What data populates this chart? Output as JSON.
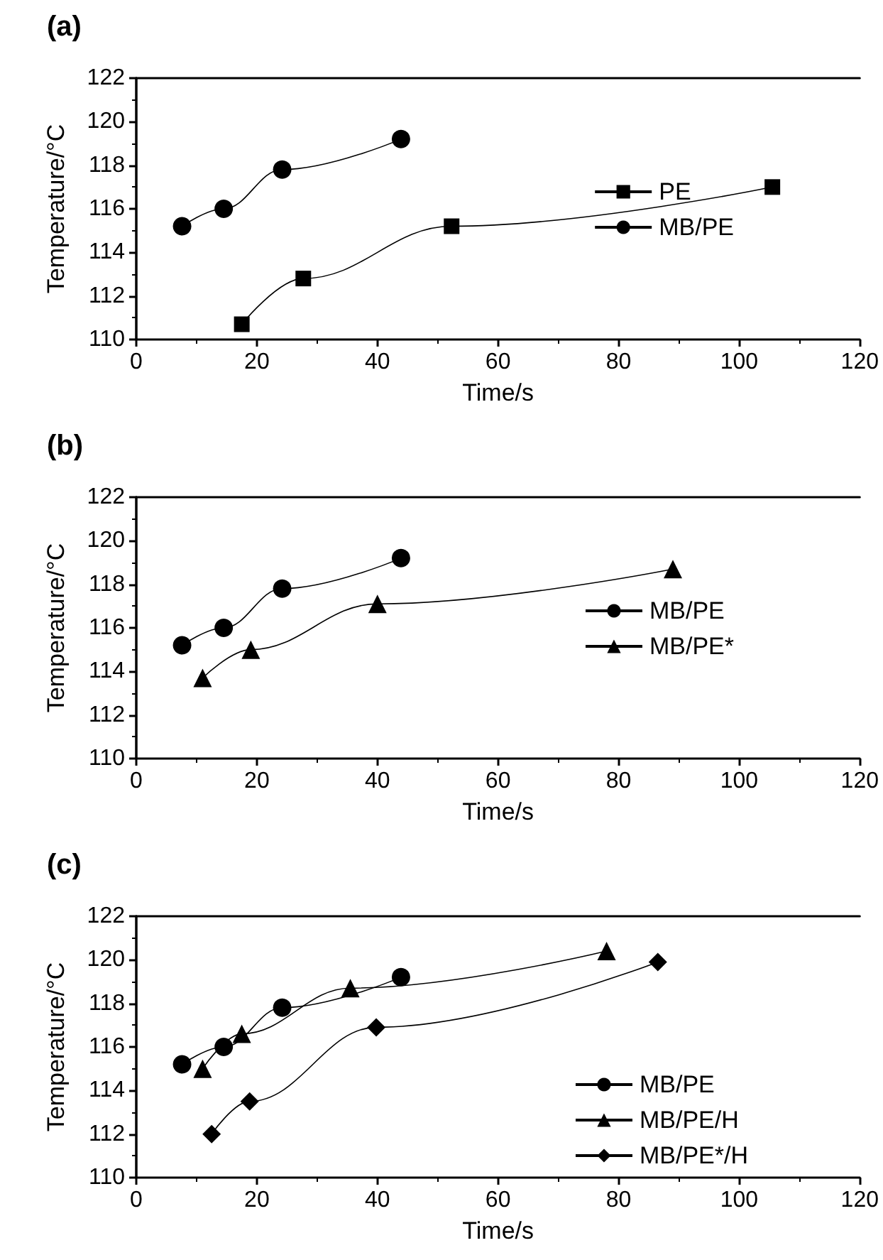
{
  "chart_data": [
    {
      "type": "line",
      "title": "(a)",
      "xlabel": "Time/s",
      "ylabel": "Temperature/°C",
      "xlim": [
        0,
        120
      ],
      "xticks": [
        0,
        20,
        40,
        60,
        80,
        100,
        120
      ],
      "ylim": [
        110,
        122
      ],
      "yticks": [
        110,
        112,
        114,
        116,
        118,
        120,
        122
      ],
      "grid": false,
      "legend": "right",
      "series": [
        {
          "name": "PE",
          "color": "#000000",
          "marker": "square",
          "x": [
            17.5,
            27.7,
            52.3,
            105.5
          ],
          "values": [
            110.7,
            112.8,
            115.2,
            117.0
          ]
        },
        {
          "name": "MB/PE",
          "color": "#000000",
          "marker": "circle",
          "x": [
            7.6,
            14.5,
            24.2,
            43.9
          ],
          "values": [
            115.2,
            116.0,
            117.8,
            119.2
          ]
        }
      ]
    },
    {
      "type": "line",
      "title": "(b)",
      "xlabel": "Time/s",
      "ylabel": "Temperature/°C",
      "xlim": [
        0,
        120
      ],
      "xticks": [
        0,
        20,
        40,
        60,
        80,
        100,
        120
      ],
      "ylim": [
        110,
        122
      ],
      "yticks": [
        110,
        112,
        114,
        116,
        118,
        120,
        122
      ],
      "grid": false,
      "legend": "right",
      "series": [
        {
          "name": "MB/PE",
          "color": "#000000",
          "marker": "circle",
          "x": [
            7.6,
            14.5,
            24.2,
            43.9
          ],
          "values": [
            115.2,
            116.0,
            117.8,
            119.2
          ]
        },
        {
          "name": "MB/PE*",
          "color": "#000000",
          "marker": "triangle",
          "x": [
            11,
            19,
            40,
            89
          ],
          "values": [
            113.7,
            115.0,
            117.1,
            118.7
          ]
        }
      ]
    },
    {
      "type": "line",
      "title": "(c)",
      "xlabel": "Time/s",
      "ylabel": "Temperature/°C",
      "xlim": [
        0,
        120
      ],
      "xticks": [
        0,
        20,
        40,
        60,
        80,
        100,
        120
      ],
      "ylim": [
        110,
        122
      ],
      "yticks": [
        110,
        112,
        114,
        116,
        118,
        120,
        122
      ],
      "grid": false,
      "legend": "bottom right",
      "series": [
        {
          "name": "MB/PE",
          "color": "#000000",
          "marker": "circle",
          "x": [
            7.6,
            14.5,
            24.2,
            43.9
          ],
          "values": [
            115.2,
            116.0,
            117.8,
            119.2
          ]
        },
        {
          "name": "MB/PE/H",
          "color": "#000000",
          "marker": "triangle",
          "x": [
            11,
            17.5,
            35.5,
            78
          ],
          "values": [
            115.0,
            116.6,
            118.7,
            120.4
          ]
        },
        {
          "name": "MB/PE*/H",
          "color": "#000000",
          "marker": "diamond",
          "x": [
            12.5,
            18.8,
            39.8,
            86.5
          ],
          "values": [
            112.0,
            113.5,
            116.9,
            119.9
          ]
        }
      ]
    }
  ]
}
